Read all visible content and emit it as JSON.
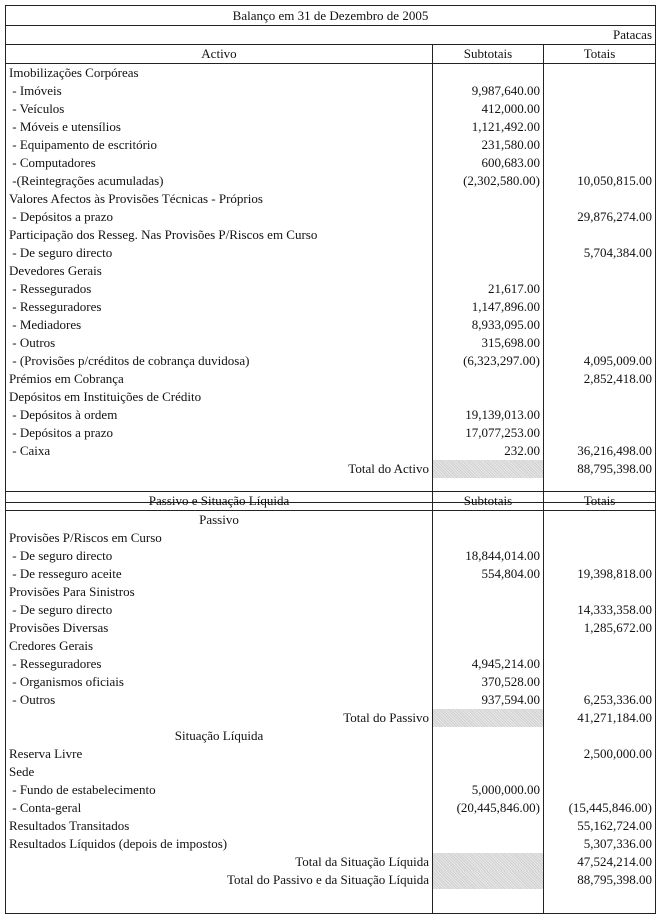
{
  "title": "Balanço em 31 de Dezembro de 2005",
  "currency": "Patacas",
  "activo": {
    "header": {
      "label": "Activo",
      "sub": "Subtotais",
      "tot": "Totais"
    },
    "rows": [
      {
        "type": "heading",
        "label": "Imobilizações Corpóreas",
        "sub": "",
        "tot": ""
      },
      {
        "type": "item",
        "label": " - Imóveis",
        "sub": "9,987,640.00",
        "tot": ""
      },
      {
        "type": "item",
        "label": " - Veículos",
        "sub": "412,000.00",
        "tot": ""
      },
      {
        "type": "item",
        "label": " - Móveis e utensílios",
        "sub": "1,121,492.00",
        "tot": ""
      },
      {
        "type": "item",
        "label": " - Equipamento de escritório",
        "sub": "231,580.00",
        "tot": ""
      },
      {
        "type": "item",
        "label": " - Computadores",
        "sub": "600,683.00",
        "tot": ""
      },
      {
        "type": "item",
        "label": " -(Reintegrações acumuladas)",
        "sub": "(2,302,580.00)",
        "tot": "10,050,815.00"
      },
      {
        "type": "heading",
        "label": "Valores Afectos às Provisões Técnicas - Próprios",
        "sub": "",
        "tot": ""
      },
      {
        "type": "item",
        "label": " - Depósitos a prazo",
        "sub": "",
        "tot": "29,876,274.00"
      },
      {
        "type": "heading",
        "label": "Participação dos Resseg. Nas Provisões P/Riscos em Curso",
        "sub": "",
        "tot": ""
      },
      {
        "type": "item",
        "label": " - De seguro directo",
        "sub": "",
        "tot": "5,704,384.00"
      },
      {
        "type": "heading",
        "label": "Devedores Gerais",
        "sub": "",
        "tot": ""
      },
      {
        "type": "item",
        "label": " - Ressegurados",
        "sub": "21,617.00",
        "tot": ""
      },
      {
        "type": "item",
        "label": " - Resseguradores",
        "sub": "1,147,896.00",
        "tot": ""
      },
      {
        "type": "item",
        "label": " - Mediadores",
        "sub": "8,933,095.00",
        "tot": ""
      },
      {
        "type": "item",
        "label": " - Outros",
        "sub": "315,698.00",
        "tot": ""
      },
      {
        "type": "item",
        "label": " - (Provisões p/créditos de cobrança duvidosa)",
        "sub": "(6,323,297.00)",
        "tot": "4,095,009.00"
      },
      {
        "type": "heading",
        "label": "Prémios em Cobrança",
        "sub": "",
        "tot": "2,852,418.00"
      },
      {
        "type": "heading",
        "label": "Depósitos em Instituições de Crédito",
        "sub": "",
        "tot": ""
      },
      {
        "type": "item",
        "label": " - Depósitos à ordem",
        "sub": "19,139,013.00",
        "tot": ""
      },
      {
        "type": "item",
        "label": " - Depósitos a prazo",
        "sub": "17,077,253.00",
        "tot": ""
      },
      {
        "type": "item",
        "label": " - Caixa",
        "sub": "232.00",
        "tot": "36,216,498.00"
      },
      {
        "type": "total",
        "label": "Total do Activo",
        "sub": "",
        "tot": "88,795,398.00"
      }
    ]
  },
  "passivo": {
    "header": {
      "label": "Passivo e Situação Líquida",
      "sub": "Subtotais",
      "tot": "Totais"
    },
    "rows": [
      {
        "type": "center",
        "label": "Passivo",
        "sub": "",
        "tot": ""
      },
      {
        "type": "heading",
        "label": "Provisões P/Riscos em Curso",
        "sub": "",
        "tot": ""
      },
      {
        "type": "item",
        "label": " - De seguro directo",
        "sub": "18,844,014.00",
        "tot": ""
      },
      {
        "type": "item",
        "label": " - De resseguro aceite",
        "sub": "554,804.00",
        "tot": "19,398,818.00"
      },
      {
        "type": "heading",
        "label": "Provisões Para Sinistros",
        "sub": "",
        "tot": ""
      },
      {
        "type": "item",
        "label": " - De seguro directo",
        "sub": "",
        "tot": "14,333,358.00"
      },
      {
        "type": "heading",
        "label": "Provisões Diversas",
        "sub": "",
        "tot": "1,285,672.00"
      },
      {
        "type": "heading",
        "label": "Credores Gerais",
        "sub": "",
        "tot": ""
      },
      {
        "type": "item",
        "label": " - Resseguradores",
        "sub": "4,945,214.00",
        "tot": ""
      },
      {
        "type": "item",
        "label": " - Organismos oficiais",
        "sub": "370,528.00",
        "tot": ""
      },
      {
        "type": "item",
        "label": " - Outros",
        "sub": "937,594.00",
        "tot": "6,253,336.00"
      },
      {
        "type": "total",
        "label": "Total do Passivo",
        "sub": "",
        "tot": "41,271,184.00"
      },
      {
        "type": "center",
        "label": "Situação Líquida",
        "sub": "",
        "tot": ""
      },
      {
        "type": "heading",
        "label": "Reserva Livre",
        "sub": "",
        "tot": "2,500,000.00"
      },
      {
        "type": "heading",
        "label": "Sede",
        "sub": "",
        "tot": ""
      },
      {
        "type": "item",
        "label": " - Fundo de estabelecimento",
        "sub": "5,000,000.00",
        "tot": ""
      },
      {
        "type": "item",
        "label": " - Conta-geral",
        "sub": "(20,445,846.00)",
        "tot": "(15,445,846.00)"
      },
      {
        "type": "heading",
        "label": "Resultados Transitados",
        "sub": "",
        "tot": "55,162,724.00"
      },
      {
        "type": "heading",
        "label": "Resultados Líquidos (depois de impostos)",
        "sub": "",
        "tot": "5,307,336.00"
      },
      {
        "type": "total",
        "label": "Total da Situação Líquida",
        "sub": "",
        "tot": "47,524,214.00"
      },
      {
        "type": "total",
        "label": "Total do Passivo e da Situação Líquida",
        "sub": "",
        "tot": "88,795,398.00"
      }
    ]
  }
}
